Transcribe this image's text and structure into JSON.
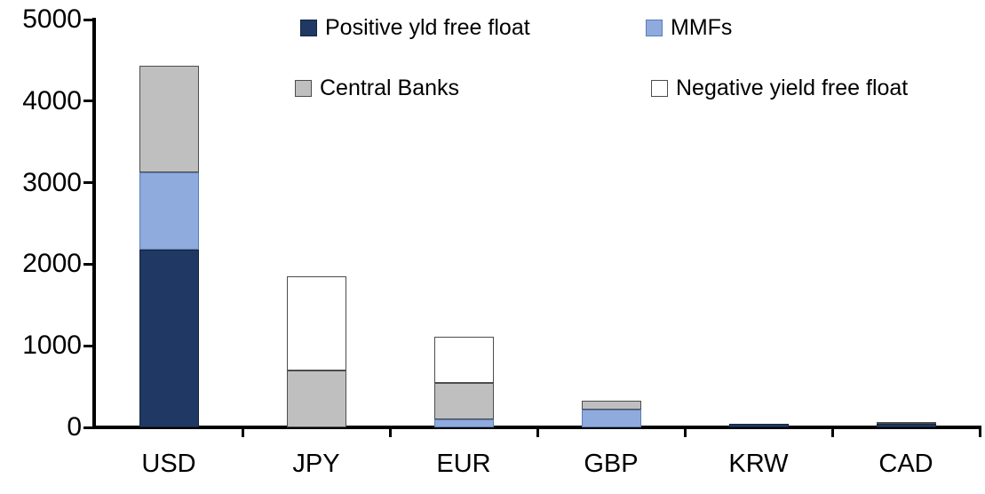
{
  "chart_data": {
    "type": "bar",
    "stacked": true,
    "categories": [
      "USD",
      "JPY",
      "EUR",
      "GBP",
      "KRW",
      "CAD"
    ],
    "series": [
      {
        "name": "Positive yld free float",
        "color": "#1F3864",
        "border_color": "#17243F",
        "values": [
          2175,
          0,
          0,
          0,
          45,
          40
        ]
      },
      {
        "name": "MMFs",
        "color": "#8FAADC",
        "border_color": "#5B7CB5",
        "values": [
          955,
          0,
          100,
          215,
          0,
          0
        ]
      },
      {
        "name": "Central Banks",
        "color": "#BFBFBF",
        "border_color": "#4D4D4D",
        "values": [
          1300,
          700,
          440,
          115,
          0,
          25
        ]
      },
      {
        "name": "Negative yield free float",
        "color": "#FFFFFF",
        "border_color": "#4D4D4D",
        "values": [
          0,
          1150,
          570,
          0,
          0,
          0
        ]
      }
    ],
    "totals": [
      4430,
      1850,
      1110,
      330,
      45,
      65
    ],
    "ylim": [
      0,
      5000
    ],
    "yticks": [
      0,
      1000,
      2000,
      3000,
      4000,
      5000
    ],
    "ytick_labels": [
      "0",
      "1000",
      "2000",
      "3000",
      "4000",
      "5000"
    ],
    "xlabel": "",
    "ylabel": "",
    "title": "",
    "legend_position": "top",
    "legend_columns": 2,
    "grid": false,
    "axis_color": "#000000",
    "background_color": "#FFFFFF"
  }
}
